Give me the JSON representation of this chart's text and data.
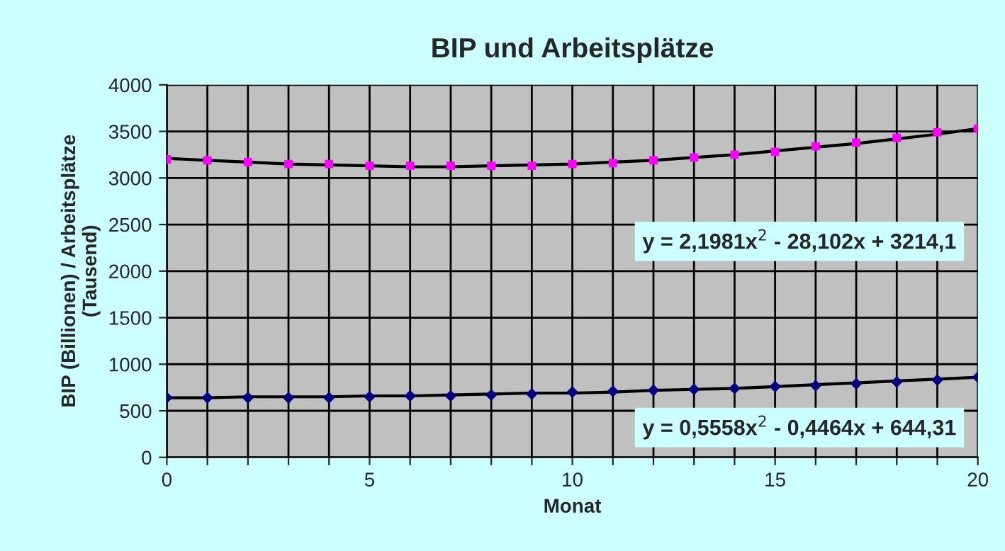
{
  "chart_data": {
    "type": "scatter",
    "title": "BIP und Arbeitsplätze",
    "xlabel": "Monat",
    "ylabel": "BIP (Billionen) / Arbeitsplätze\n(Tausend)",
    "x": [
      0,
      1,
      2,
      3,
      4,
      5,
      6,
      7,
      8,
      9,
      10,
      11,
      12,
      13,
      14,
      15,
      16,
      17,
      18,
      19,
      20
    ],
    "series": [
      {
        "color": "#ff00ff",
        "marker": "square",
        "values": [
          3200,
          3190,
          3170,
          3150,
          3150,
          3130,
          3130,
          3130,
          3130,
          3130,
          3150,
          3160,
          3190,
          3220,
          3250,
          3280,
          3340,
          3380,
          3430,
          3490,
          3530
        ]
      },
      {
        "color": "#000080",
        "marker": "diamond",
        "values": [
          640,
          640,
          640,
          640,
          640,
          650,
          660,
          660,
          670,
          680,
          700,
          710,
          720,
          730,
          740,
          760,
          770,
          790,
          810,
          830,
          860
        ]
      },
      {
        "type": "line",
        "color": "#000000",
        "marker": "none",
        "values": [
          3210,
          3190,
          3170,
          3150,
          3140,
          3130,
          3120,
          3120,
          3130,
          3140,
          3150,
          3170,
          3190,
          3220,
          3250,
          3290,
          3330,
          3370,
          3420,
          3470,
          3530
        ]
      },
      {
        "type": "line",
        "color": "#000000",
        "marker": "none",
        "values": [
          640,
          640,
          650,
          650,
          650,
          660,
          660,
          670,
          680,
          690,
          690,
          700,
          720,
          730,
          740,
          760,
          780,
          800,
          820,
          840,
          860
        ]
      }
    ],
    "xlim": [
      0,
      20
    ],
    "ylim": [
      0,
      4000
    ],
    "xticks": [
      0,
      {
        "value": 1,
        "label": null
      },
      {
        "value": 2,
        "label": null
      },
      {
        "value": 3,
        "label": null
      },
      {
        "value": 4,
        "label": null
      },
      5,
      {
        "value": 6,
        "label": null
      },
      {
        "value": 7,
        "label": null
      },
      {
        "value": 8,
        "label": null
      },
      {
        "value": 9,
        "label": null
      },
      10,
      {
        "value": 11,
        "label": null
      },
      {
        "value": 12,
        "label": null
      },
      {
        "value": 13,
        "label": null
      },
      {
        "value": 14,
        "label": null
      },
      15,
      {
        "value": 16,
        "label": null
      },
      {
        "value": 17,
        "label": null
      },
      {
        "value": 18,
        "label": null
      },
      {
        "value": 19,
        "label": null
      },
      20
    ],
    "yticks": [
      0,
      500,
      1000,
      1500,
      2000,
      2500,
      3000,
      3500,
      4000
    ],
    "grid": true,
    "legend": false,
    "annotations": [
      "y = 2,1981x$^{2}$ - 28,102x + 3214,1",
      "y = 0,5558x$^{2}$ - 0,4464x + 644,31"
    ]
  }
}
